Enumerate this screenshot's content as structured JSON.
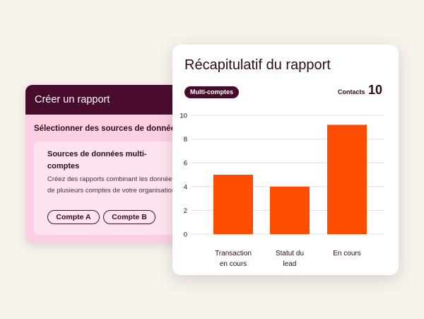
{
  "create_panel": {
    "title": "Créer un rapport",
    "subtitle": "Sélectionner des sources de données",
    "option_title": "Sources de données multi-comptes",
    "option_description": "Créez des rapports combinant les données de plusieurs comptes de votre organisation",
    "buttons": [
      "Compte A",
      "Compte B"
    ]
  },
  "summary_panel": {
    "title": "Récapitulatif du rapport",
    "badge": "Multi-comptes",
    "contacts_label": "Contacts",
    "contacts_value": "10"
  },
  "colors": {
    "accent": "#4a0c2c",
    "bar": "#ff4d00",
    "pink": "#fbd0e3"
  },
  "chart_data": {
    "type": "bar",
    "categories": [
      [
        "Transaction",
        "en cours"
      ],
      [
        "Statut du",
        "lead"
      ],
      [
        "En cours"
      ]
    ],
    "values": [
      5,
      4,
      9.2
    ],
    "yticks": [
      0,
      2,
      4,
      6,
      8,
      10
    ],
    "ylim": [
      0,
      10
    ],
    "grid": true
  }
}
